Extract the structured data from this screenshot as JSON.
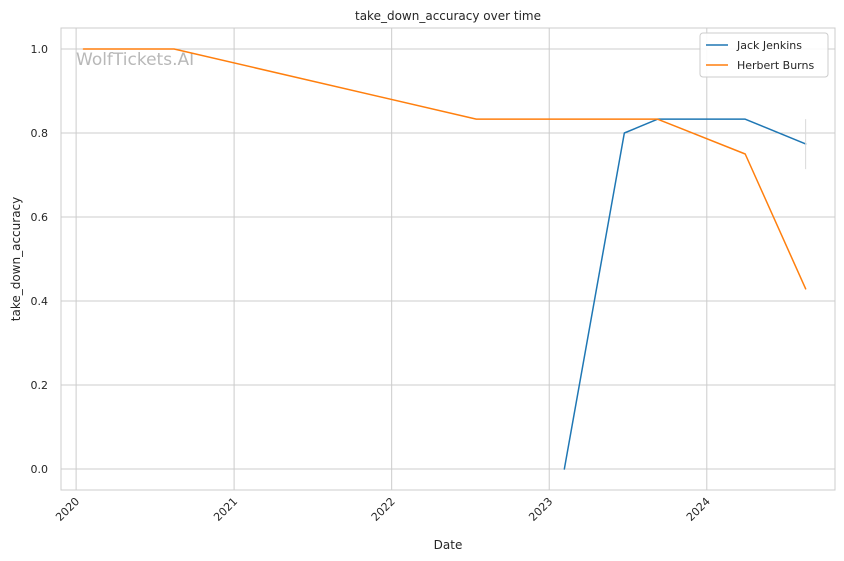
{
  "chart_data": {
    "type": "line",
    "title": "take_down_accuracy over time",
    "xlabel": "Date",
    "ylabel": "take_down_accuracy",
    "watermark": "WolfTickets.AI",
    "xlim": [
      "2019-11-27",
      "2024-10-24"
    ],
    "ylim": [
      -0.05,
      1.05
    ],
    "x_ticks": [
      "2020-01-01",
      "2021-01-01",
      "2022-01-01",
      "2023-01-01",
      "2024-01-01"
    ],
    "x_tick_labels": [
      "2020",
      "2021",
      "2022",
      "2023",
      "2024"
    ],
    "y_ticks": [
      0.0,
      0.2,
      0.4,
      0.6,
      0.8,
      1.0
    ],
    "y_tick_labels": [
      "0.0",
      "0.2",
      "0.4",
      "0.6",
      "0.8",
      "1.0"
    ],
    "grid": true,
    "legend_position": "top-right",
    "series": [
      {
        "name": "Jack Jenkins",
        "color": "#1f77b4",
        "x": [
          "2023-02-05",
          "2023-06-24",
          "2023-09-09",
          "2024-03-30",
          "2024-08-17"
        ],
        "y": [
          0.0,
          0.8,
          0.833,
          0.833,
          0.774
        ],
        "error_bar": {
          "x": "2024-08-17",
          "low": 0.714,
          "high": 0.833
        }
      },
      {
        "name": "Herbert Burns",
        "color": "#ff7f0e",
        "x": [
          "2020-01-18",
          "2020-08-15",
          "2022-07-16",
          "2023-09-09",
          "2024-03-30",
          "2024-08-17"
        ],
        "y": [
          1.0,
          1.0,
          0.833,
          0.833,
          0.75,
          0.429
        ]
      }
    ]
  }
}
